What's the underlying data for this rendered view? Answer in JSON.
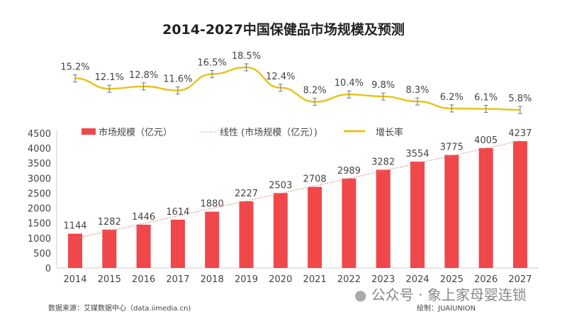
{
  "chart_data": [
    {
      "type": "bar",
      "title": "2014-2027中国保健品市场规模及预测",
      "categories": [
        "2014",
        "2015",
        "2016",
        "2017",
        "2018",
        "2019",
        "2020",
        "2021",
        "2022",
        "2023",
        "2024",
        "2025",
        "2026",
        "2027"
      ],
      "series": [
        {
          "name": "市场规模（亿元）",
          "values": [
            1144,
            1282,
            1446,
            1614,
            1880,
            2227,
            2503,
            2708,
            2989,
            3282,
            3554,
            3775,
            4005,
            4237
          ],
          "color": "#f0474a"
        },
        {
          "name": "线性 (市场规模（亿元）)",
          "type": "trendline",
          "color": "#e08070"
        }
      ],
      "ylim": [
        0,
        4500
      ],
      "yticks": [
        0,
        500,
        1000,
        1500,
        2000,
        2500,
        3000,
        3500,
        4000,
        4500
      ],
      "legend": "top"
    },
    {
      "type": "line",
      "categories": [
        "2014",
        "2015",
        "2016",
        "2017",
        "2018",
        "2019",
        "2020",
        "2021",
        "2022",
        "2023",
        "2024",
        "2025",
        "2026",
        "2027"
      ],
      "series": [
        {
          "name": "增长率",
          "values": [
            15.2,
            12.1,
            12.8,
            11.6,
            16.5,
            18.5,
            12.4,
            8.2,
            10.4,
            9.8,
            8.3,
            6.2,
            6.1,
            5.8
          ],
          "labels": [
            "15.2%",
            "12.1%",
            "12.8%",
            "11.6%",
            "16.5%",
            "18.5%",
            "12.4%",
            "8.2%",
            "10.4%",
            "9.8%",
            "8.3%",
            "6.2%",
            "6.1%",
            "5.8%"
          ],
          "color": "#e6c41c",
          "error_bars": true
        }
      ]
    }
  ],
  "footer": {
    "source": "数据来源：艾媒数据中心（data.iimedia.cn)",
    "credit": "绘制：JUAIUNION",
    "watermark": "公众号 · 象上家母婴连锁"
  }
}
